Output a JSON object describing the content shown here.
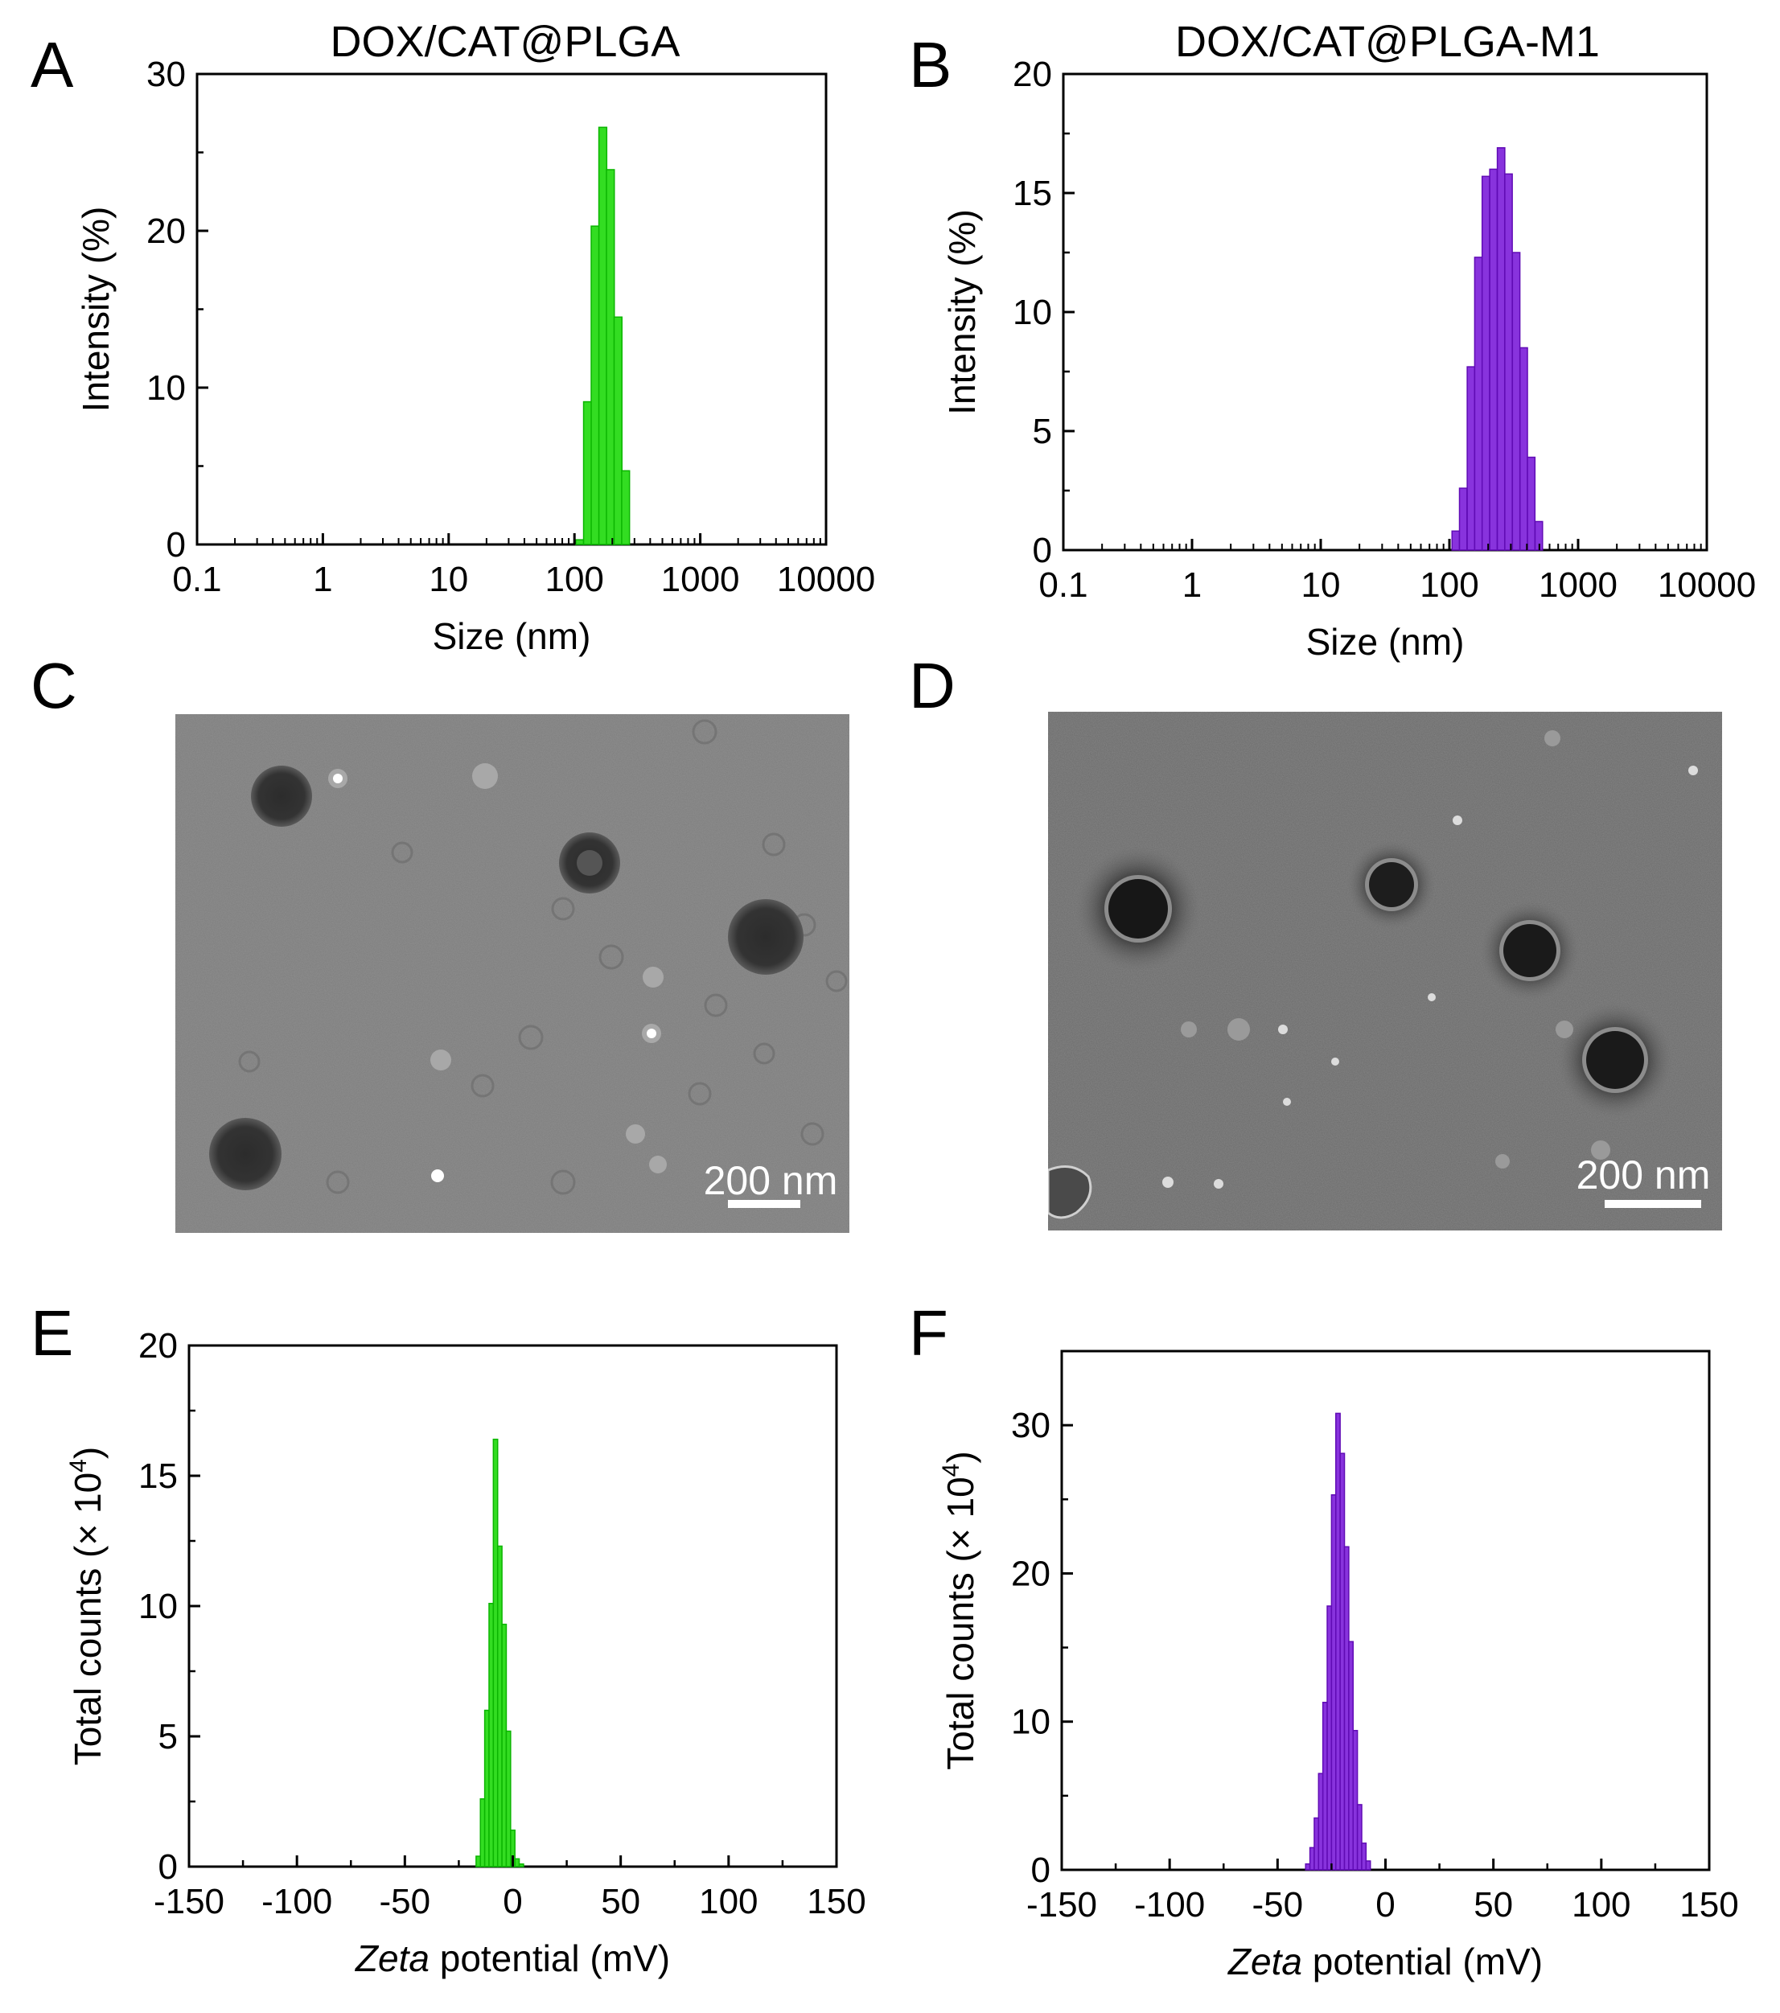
{
  "panels": {
    "A": {
      "letter": "A",
      "title": "DOX/CAT@PLGA"
    },
    "B": {
      "letter": "B",
      "title": "DOX/CAT@PLGA-M1"
    },
    "C": {
      "letter": "C",
      "scale_bar": "200 nm"
    },
    "D": {
      "letter": "D",
      "scale_bar": "200 nm"
    },
    "E": {
      "letter": "E"
    },
    "F": {
      "letter": "F"
    }
  },
  "colors": {
    "green": "#33dd22",
    "purple": "#8833dd"
  },
  "chart_data": [
    {
      "panel": "A",
      "type": "bar",
      "title": "DOX/CAT@PLGA",
      "xlabel": "Size (nm)",
      "ylabel": "Intensity (%)",
      "xscale": "log",
      "xlim": [
        0.1,
        10000
      ],
      "ylim": [
        0,
        30
      ],
      "xticks": [
        "0.1",
        "1",
        "10",
        "100",
        "1000",
        "10000"
      ],
      "yticks": [
        "0",
        "10",
        "20",
        "30"
      ],
      "x": [
        110,
        127,
        146,
        168,
        193,
        222,
        255
      ],
      "values": [
        0.3,
        9.1,
        20.3,
        26.6,
        23.9,
        14.5,
        4.7
      ],
      "color": "green"
    },
    {
      "panel": "B",
      "type": "bar",
      "title": "DOX/CAT@PLGA-M1",
      "xlabel": "Size (nm)",
      "ylabel": "Intensity (%)",
      "xscale": "log",
      "xlim": [
        0.1,
        10000
      ],
      "ylim": [
        0,
        20
      ],
      "xticks": [
        "0.1",
        "1",
        "10",
        "100",
        "1000",
        "10000"
      ],
      "yticks": [
        "0",
        "5",
        "10",
        "15",
        "20"
      ],
      "x": [
        112,
        128,
        147,
        168,
        192,
        220,
        252,
        288,
        330,
        378,
        432,
        495
      ],
      "values": [
        0.8,
        2.6,
        7.7,
        12.3,
        15.7,
        16.0,
        16.9,
        15.8,
        12.5,
        8.5,
        3.9,
        1.2
      ],
      "color": "purple"
    },
    {
      "panel": "E",
      "type": "bar",
      "xlabel_italic": "Zeta",
      "xlabel_rest": " potential (mV)",
      "ylabel": "Total counts (× 10",
      "ylabel_sup": "4",
      "ylabel_end": ")",
      "xlim": [
        -150,
        150
      ],
      "ylim": [
        0,
        20
      ],
      "xticks": [
        "-150",
        "-100",
        "-50",
        "0",
        "50",
        "100",
        "150"
      ],
      "yticks": [
        "0",
        "5",
        "10",
        "15",
        "20"
      ],
      "x": [
        -16,
        -14,
        -12,
        -10,
        -8,
        -6,
        -4,
        -2,
        0,
        2,
        4
      ],
      "values": [
        0.4,
        2.6,
        6.0,
        10.1,
        16.4,
        12.3,
        9.3,
        5.2,
        1.4,
        0.3,
        0.1
      ],
      "color": "green"
    },
    {
      "panel": "F",
      "type": "bar",
      "xlabel_italic": "Zeta",
      "xlabel_rest": " potential (mV)",
      "ylabel": "Total counts (× 10",
      "ylabel_sup": "4",
      "ylabel_end": ")",
      "xlim": [
        -150,
        150
      ],
      "ylim": [
        0,
        35
      ],
      "xticks": [
        "-150",
        "-100",
        "-50",
        "0",
        "50",
        "100",
        "150"
      ],
      "yticks": [
        "0",
        "10",
        "20",
        "30"
      ],
      "x": [
        -36,
        -34,
        -32,
        -30,
        -28,
        -26,
        -24,
        -22,
        -20,
        -18,
        -16,
        -14,
        -12,
        -10,
        -8
      ],
      "values": [
        0.4,
        1.5,
        3.5,
        6.5,
        11.3,
        17.8,
        25.3,
        30.8,
        28.1,
        21.8,
        15.4,
        9.4,
        4.4,
        1.8,
        0.6
      ],
      "color": "purple"
    }
  ]
}
